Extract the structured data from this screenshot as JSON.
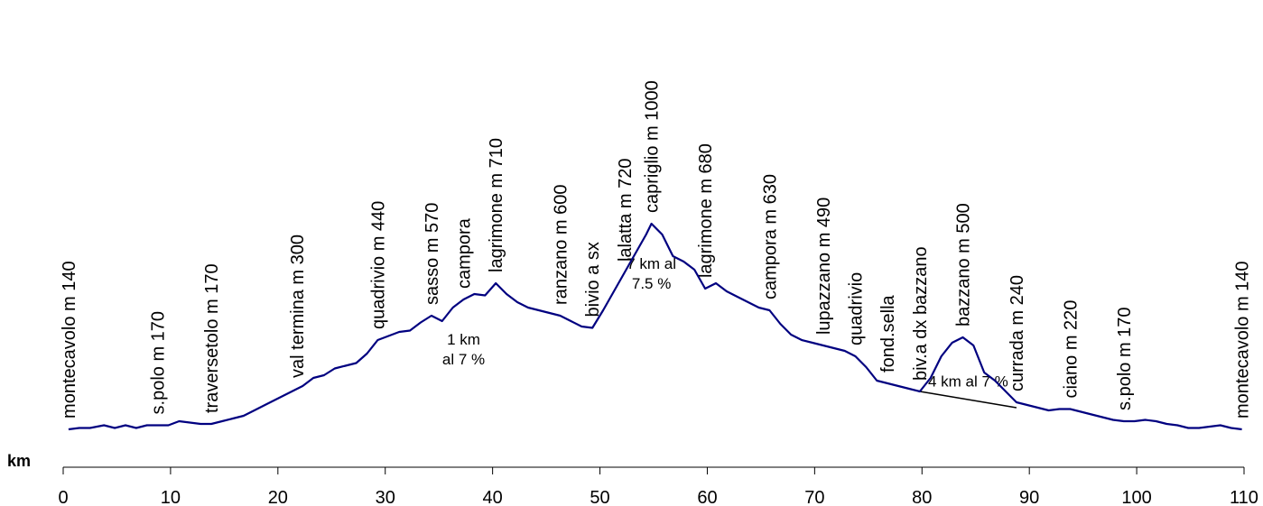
{
  "chart_data": {
    "type": "line",
    "xlabel": "km",
    "ylabel": "",
    "xlim": [
      0,
      110
    ],
    "xticks": [
      0,
      10,
      20,
      30,
      40,
      50,
      60,
      70,
      80,
      90,
      100,
      110
    ],
    "grid": false,
    "legend": "none",
    "line_color": "#000080",
    "series": [
      {
        "x": [
          0.5,
          1.5,
          2.5,
          3.8,
          4.8,
          5.8,
          6.8,
          7.8,
          8.8,
          9.8,
          10.8,
          11.8,
          12.8,
          13.8,
          14.8,
          15.8,
          16.8,
          17.8,
          18.8,
          19.8,
          20.8,
          21.8,
          22.3,
          23.3,
          24.3,
          25.3,
          26.3,
          27.3,
          28.3,
          29.3,
          30.3,
          31.3,
          32.3,
          33.3,
          34.3,
          35.3,
          36.3,
          37.3,
          38.3,
          39.3,
          40.3,
          41.3,
          42.3,
          43.3,
          44.3,
          45.3,
          46.3,
          47.3,
          48.3,
          49.3,
          50.3,
          51.3,
          52.3,
          53.3,
          54.3,
          54.8,
          55.8,
          56.8,
          57.8,
          58.8,
          59.8,
          60.8,
          61.8,
          62.8,
          63.8,
          64.8,
          65.8,
          66.8,
          67.8,
          68.8,
          69.8,
          70.8,
          71.8,
          72.8,
          73.8,
          74.8,
          75.8,
          76.8,
          77.8,
          78.8,
          79.8,
          80.8,
          81.8,
          82.8,
          83.8,
          84.8,
          85.8,
          86.8,
          87.8,
          88.8,
          89.8,
          90.8,
          91.8,
          92.8,
          93.8,
          94.8,
          95.8,
          96.8,
          97.8,
          98.8,
          99.8,
          100.8,
          101.8,
          102.8,
          103.8,
          104.8,
          105.8,
          106.8,
          107.8,
          108.8,
          109.8
        ],
        "y": [
          140,
          145,
          145,
          155,
          145,
          155,
          145,
          155,
          155,
          155,
          170,
          165,
          160,
          160,
          170,
          180,
          190,
          210,
          230,
          250,
          270,
          290,
          300,
          330,
          340,
          365,
          375,
          385,
          420,
          470,
          485,
          500,
          505,
          535,
          560,
          540,
          590,
          620,
          640,
          635,
          680,
          640,
          610,
          590,
          580,
          570,
          560,
          540,
          520,
          515,
          580,
          650,
          720,
          790,
          860,
          900,
          860,
          780,
          760,
          730,
          660,
          680,
          650,
          630,
          610,
          590,
          580,
          530,
          490,
          470,
          460,
          450,
          440,
          430,
          410,
          370,
          320,
          310,
          300,
          290,
          280,
          330,
          410,
          460,
          480,
          450,
          350,
          320,
          280,
          240,
          230,
          220,
          210,
          215,
          215,
          205,
          195,
          185,
          175,
          170,
          170,
          175,
          170,
          160,
          155,
          145,
          145,
          150,
          155,
          145,
          140
        ]
      }
    ],
    "waypoints": [
      {
        "label": "montecavolo m 140",
        "km": 0.5
      },
      {
        "label": "s.polo m 170",
        "km": 8.8
      },
      {
        "label": "traversetolo m 170",
        "km": 13.8
      },
      {
        "label": "val termina m 300",
        "km": 21.8
      },
      {
        "label": "quadrivio m 440",
        "km": 29.3
      },
      {
        "label": "sasso m 570",
        "km": 34.3
      },
      {
        "label": "campora",
        "km": 37.3
      },
      {
        "label": "lagrimone m 710",
        "km": 40.3
      },
      {
        "label": "ranzano m 600",
        "km": 46.3
      },
      {
        "label": "bivio a sx",
        "km": 49.3
      },
      {
        "label": "lalatta m 720",
        "km": 52.3
      },
      {
        "label": "capriglio m 1000",
        "km": 54.8
      },
      {
        "label": "lagrimone m 680",
        "km": 59.8
      },
      {
        "label": "campora m 630",
        "km": 65.8
      },
      {
        "label": "lupazzano m 490",
        "km": 70.8
      },
      {
        "label": "quadrivio",
        "km": 73.8
      },
      {
        "label": "fond.sella",
        "km": 76.8
      },
      {
        "label": "biv.a dx bazzano",
        "km": 79.8
      },
      {
        "label": "bazzano m 500",
        "km": 83.8
      },
      {
        "label": "currada m 240",
        "km": 88.8
      },
      {
        "label": "ciano m 220",
        "km": 93.8
      },
      {
        "label": "s.polo m 170",
        "km": 98.8
      },
      {
        "label": "montecavolo m 140",
        "km": 109.8
      }
    ],
    "annotations": [
      {
        "lines": [
          "1 km",
          "al 7 %"
        ],
        "km": 37.3
      },
      {
        "lines": [
          "7 km al",
          "7.5 %"
        ],
        "km": 54.8
      },
      {
        "lines": [
          "4 km al 7 %"
        ],
        "km": 84.3
      }
    ],
    "reference_line": {
      "x": [
        79.8,
        88.8
      ],
      "y": [
        280,
        220
      ]
    }
  }
}
